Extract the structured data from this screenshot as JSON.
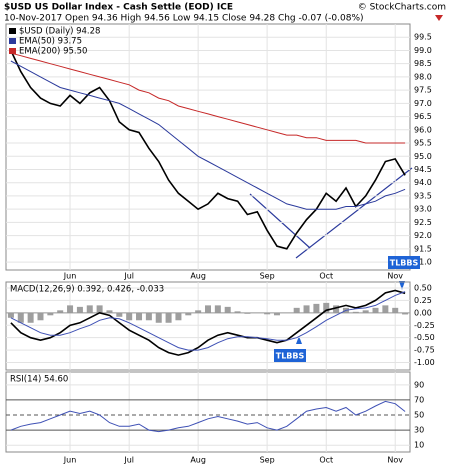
{
  "chart_data": [
    {
      "type": "line",
      "title": "$USD US Dollar Index - Cash Settle (EOD) ICE",
      "subtitle": "10-Nov-2017   Open 94.36  High 94.56  Low 94.15  Close 94.28  Chg -0.07 (-0.08%)",
      "credit": "© StockCharts.com",
      "annotations": [
        "TLBBS"
      ],
      "categories": [
        null,
        null,
        null,
        null,
        null,
        null,
        "Jun",
        null,
        null,
        null,
        null,
        null,
        "Jul",
        null,
        null,
        null,
        null,
        null,
        null,
        "Aug",
        null,
        null,
        null,
        null,
        null,
        null,
        "Sep",
        null,
        null,
        null,
        null,
        null,
        "Oct",
        null,
        null,
        null,
        null,
        null,
        null,
        "Nov",
        null
      ],
      "series": [
        {
          "name": "$USD (Daily) 94.28",
          "color": "#000000",
          "values": [
            99.0,
            98.2,
            97.6,
            97.2,
            97.0,
            96.9,
            97.3,
            97.0,
            97.4,
            97.6,
            97.1,
            96.3,
            96.0,
            95.9,
            95.3,
            94.8,
            94.1,
            93.6,
            93.3,
            93.0,
            93.2,
            93.6,
            93.4,
            93.3,
            92.8,
            92.9,
            92.2,
            91.6,
            91.5,
            92.1,
            92.6,
            93.0,
            93.6,
            93.3,
            93.8,
            93.1,
            93.5,
            94.1,
            94.8,
            94.9,
            94.28
          ]
        },
        {
          "name": "EMA(50) 93.75",
          "color": "#2b3a9c",
          "values": [
            98.6,
            98.4,
            98.2,
            98.0,
            97.8,
            97.6,
            97.5,
            97.4,
            97.3,
            97.2,
            97.1,
            97.0,
            96.8,
            96.6,
            96.4,
            96.2,
            95.9,
            95.6,
            95.3,
            95.0,
            94.8,
            94.6,
            94.4,
            94.2,
            94.0,
            93.8,
            93.6,
            93.4,
            93.2,
            93.1,
            93.0,
            93.0,
            93.0,
            93.0,
            93.1,
            93.1,
            93.2,
            93.3,
            93.5,
            93.6,
            93.75
          ]
        },
        {
          "name": "EMA(200) 95.50",
          "color": "#c62828",
          "values": [
            98.9,
            98.8,
            98.7,
            98.6,
            98.5,
            98.4,
            98.3,
            98.2,
            98.1,
            98.0,
            97.9,
            97.8,
            97.7,
            97.5,
            97.4,
            97.2,
            97.1,
            96.9,
            96.8,
            96.7,
            96.6,
            96.5,
            96.4,
            96.3,
            96.2,
            96.1,
            96.0,
            95.9,
            95.8,
            95.8,
            95.7,
            95.7,
            95.6,
            95.6,
            95.6,
            95.6,
            95.5,
            95.5,
            95.5,
            95.5,
            95.5
          ]
        }
      ],
      "ylim": [
        90.7,
        100.0
      ],
      "yticks": [
        {
          "value": 91,
          "label": "91.0"
        },
        91.5,
        {
          "value": 92,
          "label": "92.0"
        },
        92.5,
        {
          "value": 93,
          "label": "93.0"
        },
        93.5,
        {
          "value": 94,
          "label": "94.0"
        },
        94.5,
        {
          "value": 95,
          "label": "95.0"
        },
        95.5,
        {
          "value": 96,
          "label": "96.0"
        },
        96.5,
        {
          "value": 97,
          "label": "97.0"
        },
        97.5,
        {
          "value": 98,
          "label": "98.0"
        },
        98.5,
        {
          "value": 99,
          "label": "99.0"
        },
        99.5
      ],
      "grid": true
    },
    {
      "type": "line",
      "title": "MACD(12,26,9) 0.392, 0.426, -0.033",
      "annotations": [
        "TLBBS"
      ],
      "series": [
        {
          "type": "bar",
          "color": "#9e9e9e",
          "values": [
            -0.1,
            -0.2,
            -0.2,
            -0.15,
            -0.05,
            0.05,
            0.15,
            0.12,
            0.15,
            0.15,
            0.05,
            -0.08,
            -0.15,
            -0.15,
            -0.15,
            -0.2,
            -0.2,
            -0.15,
            -0.05,
            0.05,
            0.15,
            0.15,
            0.12,
            0.03,
            -0.02,
            0,
            -0.03,
            -0.05,
            0,
            0.1,
            0.15,
            0.18,
            0.2,
            0.15,
            0.1,
            0.02,
            0.05,
            0.1,
            0.15,
            0.1,
            -0.033
          ]
        },
        {
          "color": "#000000",
          "values": [
            -0.2,
            -0.4,
            -0.5,
            -0.55,
            -0.5,
            -0.4,
            -0.25,
            -0.2,
            -0.1,
            0.0,
            -0.05,
            -0.2,
            -0.35,
            -0.45,
            -0.55,
            -0.7,
            -0.8,
            -0.85,
            -0.8,
            -0.7,
            -0.55,
            -0.45,
            -0.4,
            -0.45,
            -0.5,
            -0.5,
            -0.55,
            -0.6,
            -0.55,
            -0.4,
            -0.25,
            -0.1,
            0.05,
            0.1,
            0.15,
            0.1,
            0.15,
            0.25,
            0.4,
            0.45,
            0.392
          ]
        },
        {
          "color": "#3f51b5",
          "values": [
            -0.1,
            -0.2,
            -0.3,
            -0.4,
            -0.45,
            -0.45,
            -0.4,
            -0.32,
            -0.25,
            -0.15,
            -0.1,
            -0.12,
            -0.2,
            -0.3,
            -0.4,
            -0.5,
            -0.6,
            -0.7,
            -0.75,
            -0.75,
            -0.7,
            -0.6,
            -0.52,
            -0.48,
            -0.48,
            -0.5,
            -0.52,
            -0.55,
            -0.55,
            -0.5,
            -0.4,
            -0.28,
            -0.15,
            -0.05,
            0.05,
            0.08,
            0.1,
            0.15,
            0.25,
            0.35,
            0.426
          ]
        }
      ],
      "ylim": [
        -1.15,
        0.62
      ],
      "yticks": [
        {
          "value": 0.5,
          "label": "0.50"
        },
        {
          "value": 0.25,
          "label": "0.25"
        },
        {
          "value": 0,
          "label": "0.00"
        },
        {
          "value": -0.25,
          "label": "-0.25"
        },
        {
          "value": -0.5,
          "label": "-0.50"
        },
        {
          "value": -0.75,
          "label": "-0.75"
        },
        {
          "value": -1,
          "label": "-1.00"
        }
      ],
      "grid": true
    },
    {
      "type": "line",
      "title": "RSI(14) 54.60",
      "categories": [
        null,
        null,
        null,
        null,
        null,
        null,
        "Jun",
        null,
        null,
        null,
        null,
        null,
        "Jul",
        null,
        null,
        null,
        null,
        null,
        null,
        "Aug",
        null,
        null,
        null,
        null,
        null,
        null,
        "Sep",
        null,
        null,
        null,
        null,
        null,
        "Oct",
        null,
        null,
        null,
        null,
        null,
        null,
        "Nov",
        null
      ],
      "series": [
        {
          "color": "#3f51b5",
          "values": [
            30,
            35,
            38,
            40,
            45,
            50,
            55,
            52,
            55,
            50,
            40,
            35,
            35,
            38,
            30,
            28,
            30,
            33,
            35,
            40,
            45,
            48,
            45,
            42,
            38,
            40,
            33,
            30,
            35,
            45,
            55,
            58,
            60,
            55,
            60,
            50,
            55,
            62,
            68,
            65,
            54.6
          ]
        }
      ],
      "ylim": [
        1,
        107
      ],
      "yticks": [
        90,
        70,
        50,
        30,
        10
      ],
      "grid": true
    }
  ]
}
